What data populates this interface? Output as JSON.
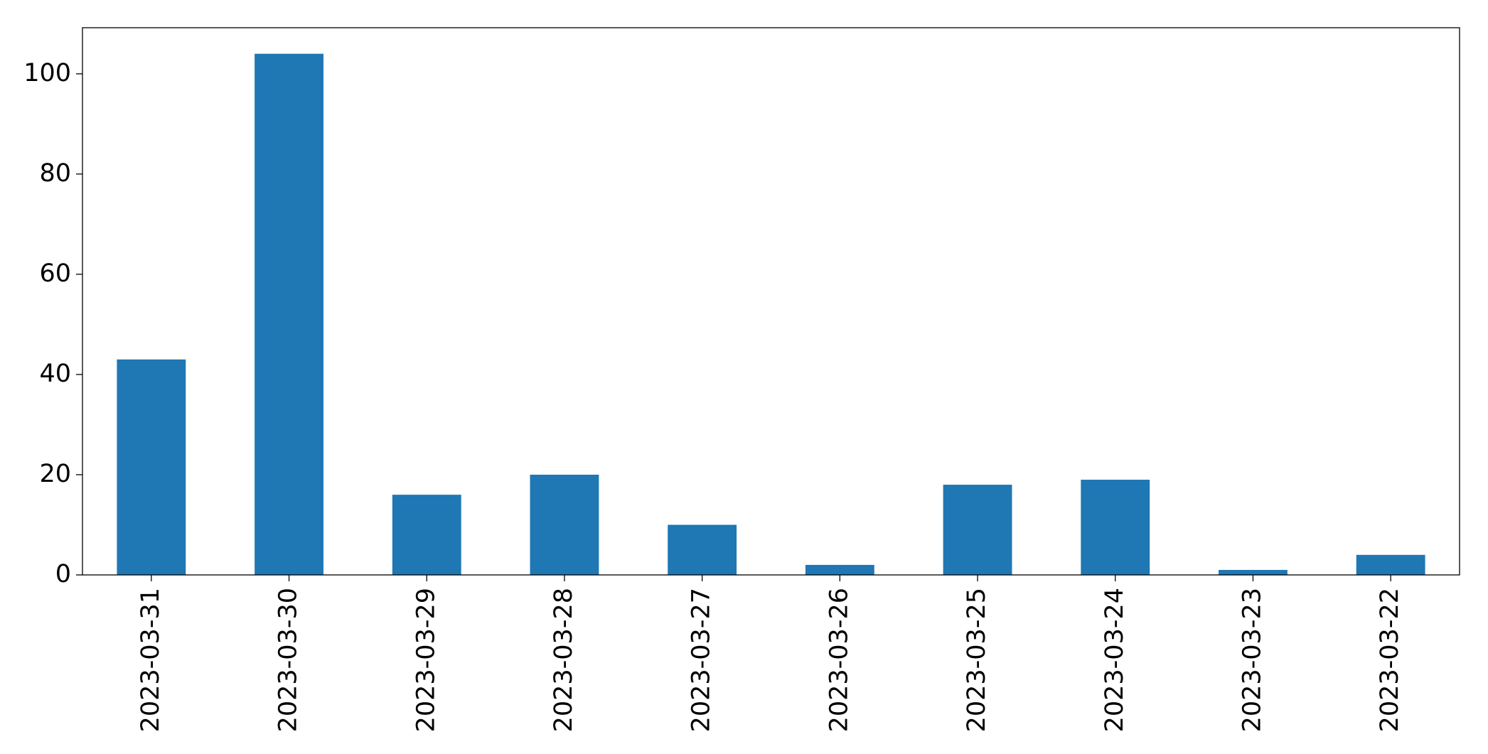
{
  "chart_data": {
    "type": "bar",
    "categories": [
      "2023-03-31",
      "2023-03-30",
      "2023-03-29",
      "2023-03-28",
      "2023-03-27",
      "2023-03-26",
      "2023-03-25",
      "2023-03-24",
      "2023-03-23",
      "2023-03-22"
    ],
    "values": [
      43,
      104,
      16,
      20,
      10,
      2,
      18,
      19,
      1,
      4
    ],
    "color": "#1f77b4",
    "ylim": [
      0,
      109.2
    ],
    "yticks": [
      0,
      20,
      40,
      60,
      80,
      100
    ],
    "grid": false
  }
}
